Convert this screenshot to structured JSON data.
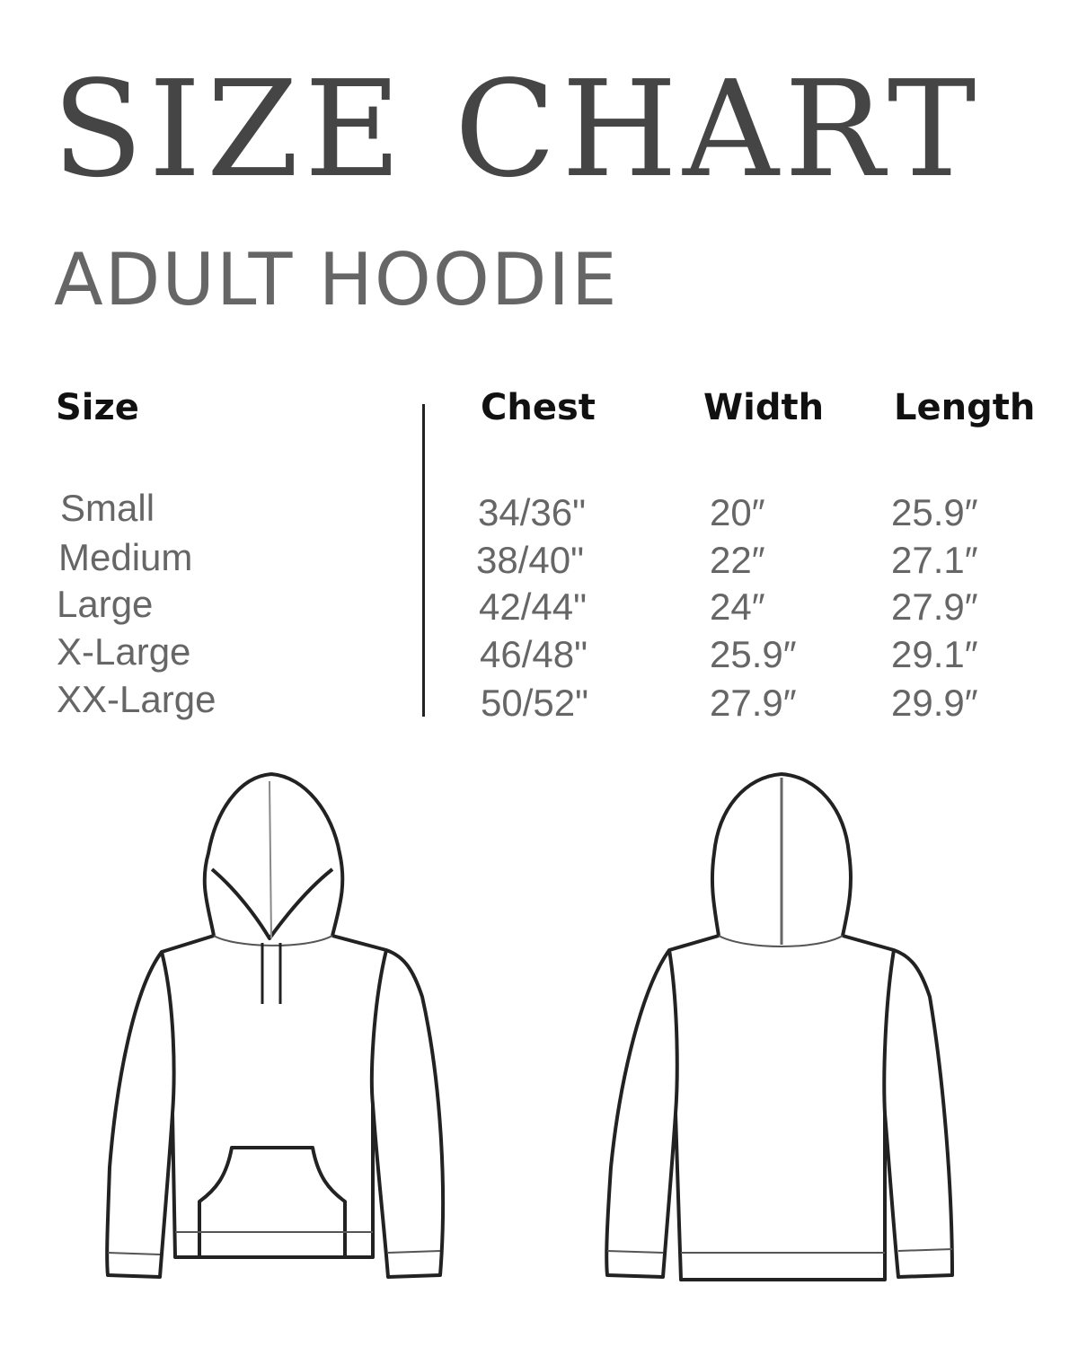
{
  "title": "SIZE CHART",
  "subtitle": "ADULT HOODIE",
  "table": {
    "headers": [
      "Size",
      "Chest",
      "Width",
      "Length"
    ],
    "rows": [
      {
        "size": "Small",
        "chest": "34/36\"",
        "width": "20″",
        "length": "25.9″"
      },
      {
        "size": "Medium",
        "chest": "38/40\"",
        "width": "22″",
        "length": "27.1″"
      },
      {
        "size": "Large",
        "chest": "42/44\"",
        "width": "24″",
        "length": "27.9″"
      },
      {
        "size": "X-Large",
        "chest": "46/48\"",
        "width": "25.9″",
        "length": "29.1″"
      },
      {
        "size": "XX-Large",
        "chest": "50/52\"",
        "width": "27.9″",
        "length": "29.9″"
      }
    ]
  },
  "colors": {
    "title": "#454545",
    "subtitle": "#666666",
    "header": "#111111",
    "cell": "#666666"
  }
}
